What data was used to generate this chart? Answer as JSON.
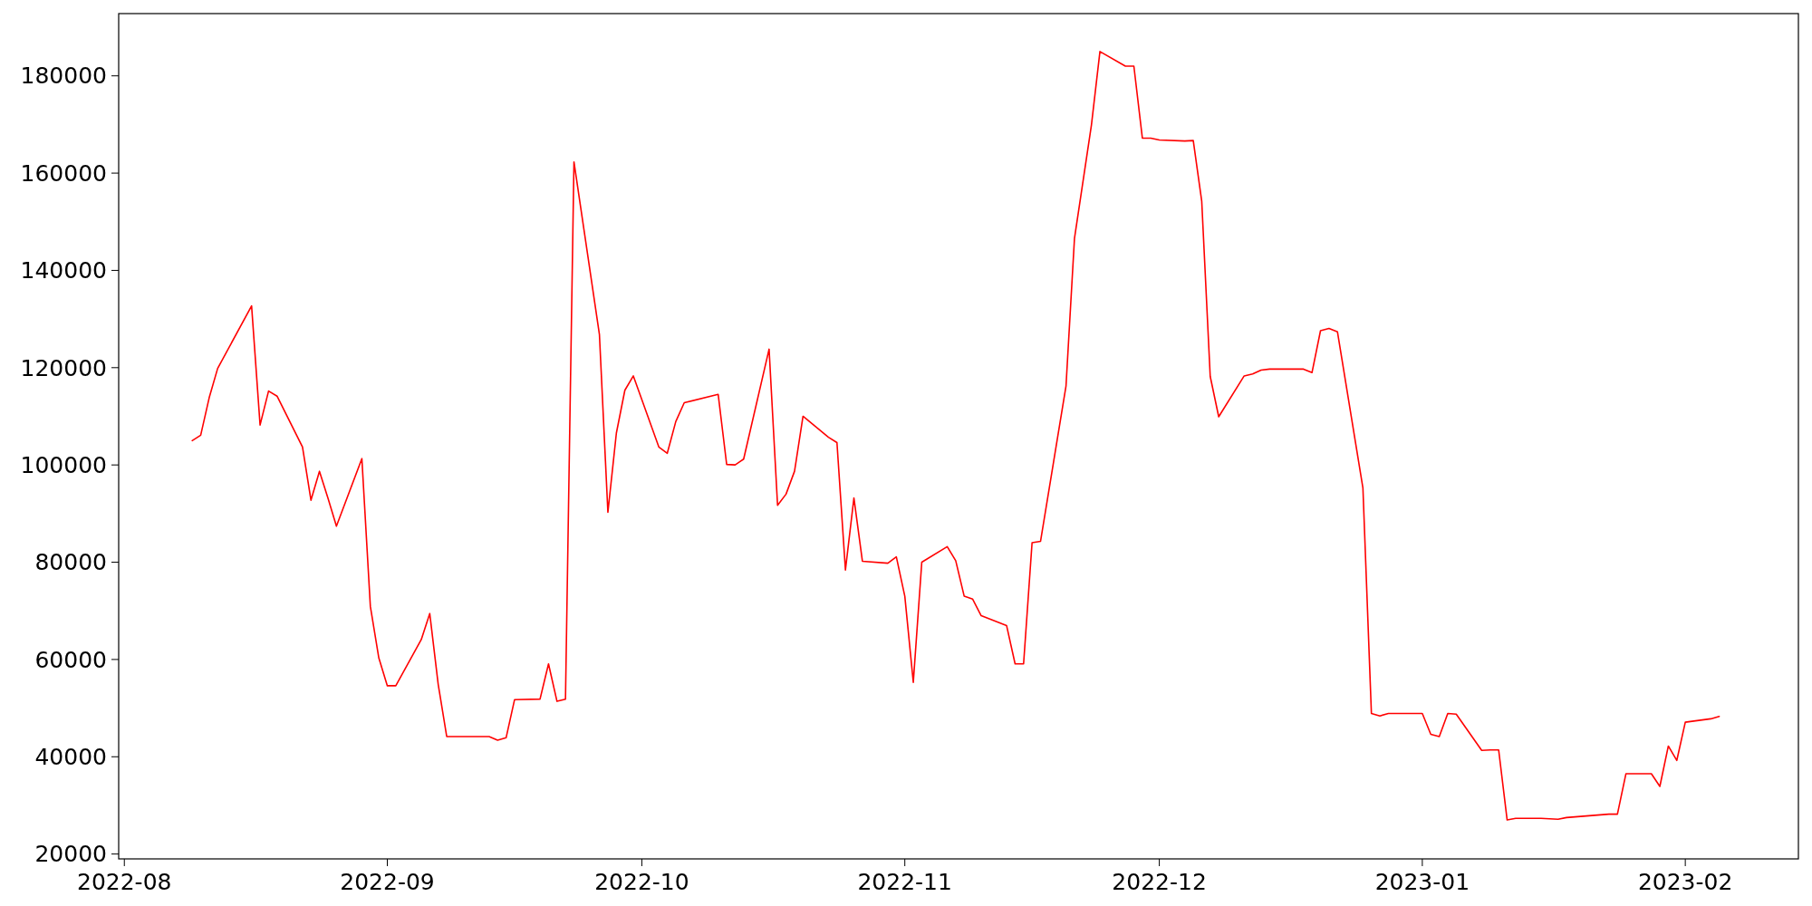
{
  "chart_data": {
    "type": "line",
    "x": [
      "2022-08-09",
      "2022-08-10",
      "2022-08-11",
      "2022-08-12",
      "2022-08-16",
      "2022-08-17",
      "2022-08-18",
      "2022-08-19",
      "2022-08-22",
      "2022-08-23",
      "2022-08-24",
      "2022-08-25",
      "2022-08-26",
      "2022-08-29",
      "2022-08-30",
      "2022-08-31",
      "2022-09-01",
      "2022-09-02",
      "2022-09-05",
      "2022-09-06",
      "2022-09-07",
      "2022-09-08",
      "2022-09-13",
      "2022-09-14",
      "2022-09-15",
      "2022-09-16",
      "2022-09-19",
      "2022-09-20",
      "2022-09-21",
      "2022-09-22",
      "2022-09-23",
      "2022-09-26",
      "2022-09-27",
      "2022-09-28",
      "2022-09-29",
      "2022-09-30",
      "2022-10-03",
      "2022-10-04",
      "2022-10-05",
      "2022-10-06",
      "2022-10-10",
      "2022-10-11",
      "2022-10-12",
      "2022-10-13",
      "2022-10-16",
      "2022-10-17",
      "2022-10-18",
      "2022-10-19",
      "2022-10-20",
      "2022-10-23",
      "2022-10-24",
      "2022-10-25",
      "2022-10-26",
      "2022-10-27",
      "2022-10-30",
      "2022-10-31",
      "2022-11-01",
      "2022-11-02",
      "2022-11-03",
      "2022-11-06",
      "2022-11-07",
      "2022-11-08",
      "2022-11-09",
      "2022-11-10",
      "2022-11-13",
      "2022-11-14",
      "2022-11-15",
      "2022-11-16",
      "2022-11-17",
      "2022-11-20",
      "2022-11-21",
      "2022-11-23",
      "2022-11-24",
      "2022-11-27",
      "2022-11-28",
      "2022-11-29",
      "2022-11-30",
      "2022-12-01",
      "2022-12-04",
      "2022-12-05",
      "2022-12-06",
      "2022-12-07",
      "2022-12-08",
      "2022-12-11",
      "2022-12-12",
      "2022-12-13",
      "2022-12-14",
      "2022-12-18",
      "2022-12-19",
      "2022-12-20",
      "2022-12-21",
      "2022-12-22",
      "2022-12-25",
      "2022-12-26",
      "2022-12-27",
      "2022-12-28",
      "2023-01-01",
      "2023-01-02",
      "2023-01-03",
      "2023-01-04",
      "2023-01-05",
      "2023-01-08",
      "2023-01-09",
      "2023-01-10",
      "2023-01-11",
      "2023-01-12",
      "2023-01-15",
      "2023-01-17",
      "2023-01-18",
      "2023-01-23",
      "2023-01-24",
      "2023-01-25",
      "2023-01-28",
      "2023-01-29",
      "2023-01-30",
      "2023-01-31",
      "2023-02-01",
      "2023-02-04",
      "2023-02-05"
    ],
    "series": [
      {
        "color": "#ff0000",
        "values": [
          105000,
          106100,
          113800,
          119850,
          132700,
          108200,
          115200,
          114150,
          103700,
          92750,
          98700,
          93200,
          87400,
          101300,
          70900,
          60300,
          54600,
          54600,
          64100,
          69450,
          54850,
          44150,
          44150,
          43400,
          43900,
          51750,
          51850,
          59100,
          51400,
          51850,
          162300,
          126850,
          90250,
          106550,
          115350,
          118300,
          103700,
          102400,
          108900,
          112800,
          114500,
          100100,
          100000,
          101200,
          123800,
          91700,
          94000,
          98700,
          110000,
          105700,
          104600,
          78400,
          93200,
          80200,
          79800,
          81100,
          73000,
          55300,
          80000,
          83200,
          80300,
          73000,
          72400,
          69000,
          66950,
          59100,
          59100,
          84000,
          84300,
          116200,
          146600,
          169900,
          185000,
          182000,
          182000,
          167200,
          167200,
          166800,
          166600,
          166700,
          154200,
          118200,
          109900,
          118300,
          118700,
          119500,
          119700,
          119700,
          119000,
          127600,
          128050,
          127350,
          95250,
          48900,
          48400,
          48900,
          48900,
          44600,
          44150,
          48900,
          48750,
          41300,
          41400,
          41400,
          27000,
          27350,
          27350,
          27150,
          27500,
          28200,
          28200,
          36500,
          36500,
          33900,
          42200,
          39250,
          47100,
          47800,
          48300
        ]
      }
    ],
    "xlim": [
      "2022-07-31T08:00",
      "2023-02-14T08:00"
    ],
    "xticks": [
      {
        "value": "2022-08",
        "label": "2022-08"
      },
      {
        "value": "2022-09",
        "label": "2022-09"
      },
      {
        "value": "2022-10",
        "label": "2022-10"
      },
      {
        "value": "2022-11",
        "label": "2022-11"
      },
      {
        "value": "2022-12",
        "label": "2022-12"
      },
      {
        "value": "2023-01",
        "label": "2023-01"
      },
      {
        "value": "2023-02",
        "label": "2023-02"
      }
    ],
    "ylim": [
      19000,
      192800
    ],
    "yticks": [
      20000,
      40000,
      60000,
      80000,
      100000,
      120000,
      140000,
      160000,
      180000
    ],
    "grid": false,
    "marker": "none",
    "line_style": "solid"
  }
}
